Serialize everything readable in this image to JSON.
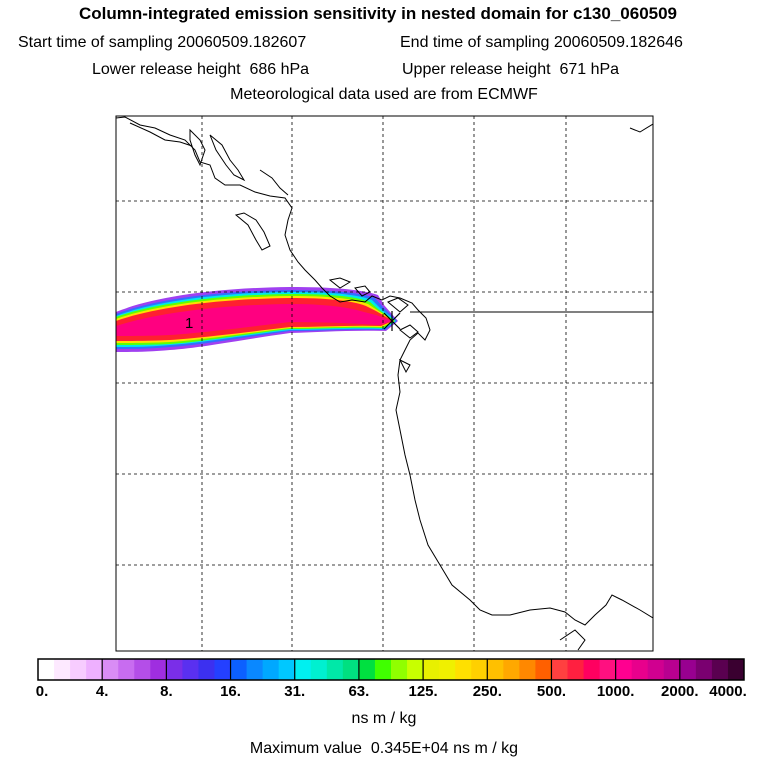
{
  "title": "Column-integrated emission sensitivity in nested domain for c130_060509",
  "header": {
    "start_label": "Start time of sampling",
    "start_value": "20060509.182607",
    "end_label": "End time of sampling",
    "end_value": "20060509.182646",
    "lower_label": "Lower release height",
    "lower_value": "686 hPa",
    "upper_label": "Upper release height",
    "upper_value": "671 hPa",
    "met_line": "Meteorological data used are from ECMWF"
  },
  "map": {
    "release_marker_label": "1",
    "colors": {
      "coast": "#000000",
      "grid": "#000000",
      "frame": "#000000"
    }
  },
  "colorbar": {
    "tick_labels": [
      "0.",
      "4.",
      "8.",
      "16.",
      "31.",
      "63.",
      "125.",
      "250.",
      "500.",
      "1000.",
      "2000.",
      "4000."
    ],
    "colors": [
      "#ffffff",
      "#fde9ff",
      "#f7ccff",
      "#eeb0ff",
      "#d98cf5",
      "#c86cf0",
      "#b44ee8",
      "#9f2ee0",
      "#7a2ee8",
      "#5a30f0",
      "#3c30f0",
      "#2440ff",
      "#0c60ff",
      "#0a88ff",
      "#00a8ff",
      "#00c8ff",
      "#00f0f0",
      "#00f0d0",
      "#00e8a8",
      "#00e080",
      "#00e040",
      "#40ff00",
      "#90ff00",
      "#c8ff00",
      "#e8f000",
      "#f0f000",
      "#ffe000",
      "#ffd000",
      "#ffc000",
      "#ffa800",
      "#ff8800",
      "#ff6000",
      "#ff4040",
      "#ff2040",
      "#ff0060",
      "#ff1080",
      "#ff0090",
      "#e8008c",
      "#d00090",
      "#b80090",
      "#980090",
      "#7a0070",
      "#5a0050",
      "#3a0030"
    ]
  },
  "units": "ns m / kg",
  "max_label": "Maximum value",
  "max_value": "0.345E+04",
  "max_units": "ns m / kg"
}
